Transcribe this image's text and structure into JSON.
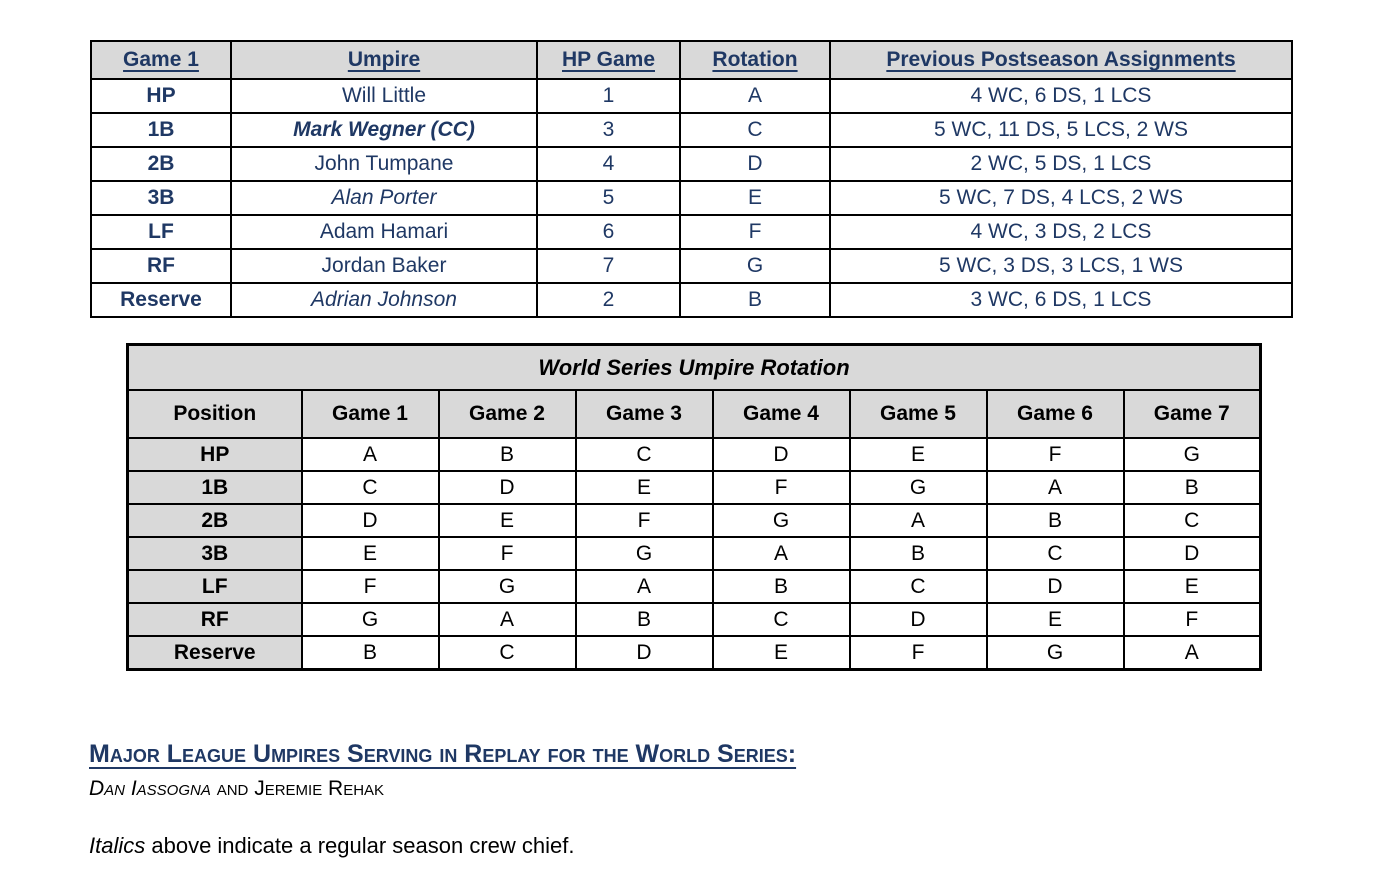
{
  "colors": {
    "navy_text": "#1f3864",
    "header_gray": "#d9d9d9",
    "border_black": "#000000",
    "page_background": "#ffffff"
  },
  "crew_table": {
    "columns": [
      "Game 1",
      "Umpire",
      "HP Game",
      "Rotation",
      "Previous Postseason Assignments"
    ],
    "rows": [
      {
        "position": "HP",
        "umpire": "Will Little",
        "umpire_style": "normal",
        "hp_game": "1",
        "rotation": "A",
        "previous": "4 WC, 6 DS, 1 LCS"
      },
      {
        "position": "1B",
        "umpire": "Mark Wegner (CC)",
        "umpire_style": "bold-italic",
        "hp_game": "3",
        "rotation": "C",
        "previous": "5 WC, 11 DS, 5 LCS, 2 WS"
      },
      {
        "position": "2B",
        "umpire": "John Tumpane",
        "umpire_style": "normal",
        "hp_game": "4",
        "rotation": "D",
        "previous": "2 WC, 5 DS, 1 LCS"
      },
      {
        "position": "3B",
        "umpire": "Alan Porter",
        "umpire_style": "italic",
        "hp_game": "5",
        "rotation": "E",
        "previous": "5 WC, 7 DS, 4 LCS, 2 WS"
      },
      {
        "position": "LF",
        "umpire": "Adam Hamari",
        "umpire_style": "normal",
        "hp_game": "6",
        "rotation": "F",
        "previous": "4 WC, 3 DS, 2 LCS"
      },
      {
        "position": "RF",
        "umpire": "Jordan Baker",
        "umpire_style": "normal",
        "hp_game": "7",
        "rotation": "G",
        "previous": "5 WC, 3 DS, 3 LCS, 1 WS"
      },
      {
        "position": "Reserve",
        "umpire": "Adrian Johnson",
        "umpire_style": "italic",
        "hp_game": "2",
        "rotation": "B",
        "previous": "3 WC, 6 DS, 1 LCS"
      }
    ]
  },
  "rotation_table": {
    "title": "World Series Umpire Rotation",
    "columns": [
      "Position",
      "Game 1",
      "Game 2",
      "Game 3",
      "Game 4",
      "Game 5",
      "Game 6",
      "Game 7"
    ],
    "rows": [
      {
        "position": "HP",
        "games": [
          "A",
          "B",
          "C",
          "D",
          "E",
          "F",
          "G"
        ]
      },
      {
        "position": "1B",
        "games": [
          "C",
          "D",
          "E",
          "F",
          "G",
          "A",
          "B"
        ]
      },
      {
        "position": "2B",
        "games": [
          "D",
          "E",
          "F",
          "G",
          "A",
          "B",
          "C"
        ]
      },
      {
        "position": "3B",
        "games": [
          "E",
          "F",
          "G",
          "A",
          "B",
          "C",
          "D"
        ]
      },
      {
        "position": "LF",
        "games": [
          "F",
          "G",
          "A",
          "B",
          "C",
          "D",
          "E"
        ]
      },
      {
        "position": "RF",
        "games": [
          "G",
          "A",
          "B",
          "C",
          "D",
          "E",
          "F"
        ]
      },
      {
        "position": "Reserve",
        "games": [
          "B",
          "C",
          "D",
          "E",
          "F",
          "G",
          "A"
        ]
      }
    ]
  },
  "replay": {
    "heading": "Major League Umpires Serving in Replay for the World Series:",
    "name_italic": "Dan Iassogna",
    "name_rest": " and Jeremie Rehak"
  },
  "note": {
    "italic_word": "Italics",
    "rest": " above indicate a regular season crew chief."
  }
}
